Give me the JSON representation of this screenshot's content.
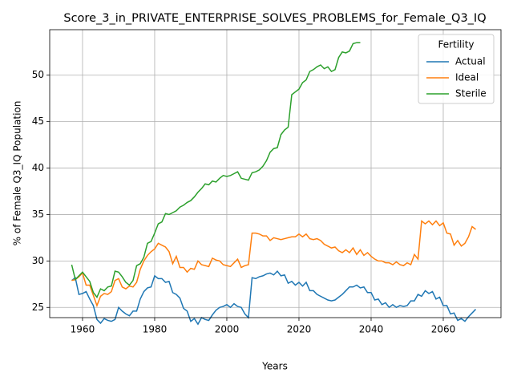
{
  "chart_data": {
    "type": "line",
    "title": "Score_3_in_PRIVATE_ENTERPRISE_SOLVES_PROBLEMS_for_Female_Q3_IQ",
    "xlabel": "Years",
    "ylabel": "% of Female Q3_IQ Population",
    "legend_title": "Fertility",
    "legend": "upper right",
    "grid": true,
    "xlim": [
      1950.9,
      2076
    ],
    "ylim": [
      23.9,
      54.9
    ],
    "xticks": [
      1960,
      1980,
      2000,
      2020,
      2040,
      2060
    ],
    "yticks": [
      25,
      30,
      35,
      40,
      45,
      50
    ],
    "x": [
      1957,
      1958,
      1959,
      1960,
      1961,
      1962,
      1963,
      1964,
      1965,
      1966,
      1967,
      1968,
      1969,
      1970,
      1971,
      1972,
      1973,
      1974,
      1975,
      1976,
      1977,
      1978,
      1979,
      1980,
      1981,
      1982,
      1983,
      1984,
      1985,
      1986,
      1987,
      1988,
      1989,
      1990,
      1991,
      1992,
      1993,
      1994,
      1995,
      1996,
      1997,
      1998,
      1999,
      2000,
      2001,
      2002,
      2003,
      2004,
      2005,
      2006,
      2007,
      2008,
      2009,
      2010,
      2011,
      2012,
      2013,
      2014,
      2015,
      2016,
      2017,
      2018,
      2019,
      2020,
      2021,
      2022,
      2023,
      2024,
      2025,
      2026,
      2027,
      2028,
      2029,
      2030,
      2031,
      2032,
      2033,
      2034,
      2035,
      2036,
      2037,
      2038,
      2039,
      2040,
      2041,
      2042,
      2043,
      2044,
      2045,
      2046,
      2047,
      2048,
      2049,
      2050,
      2051,
      2052,
      2053,
      2054,
      2055,
      2056,
      2057,
      2058,
      2059,
      2060,
      2061,
      2062,
      2063,
      2064,
      2065,
      2066,
      2067,
      2068,
      2069
    ],
    "series": [
      {
        "name": "Actual",
        "color": "#1f77b4",
        "values": [
          27.9,
          28.2,
          26.4,
          26.5,
          26.7,
          25.9,
          25.2,
          23.7,
          23.3,
          23.8,
          23.6,
          23.5,
          23.7,
          25.0,
          24.6,
          24.3,
          24.1,
          24.6,
          24.6,
          25.9,
          26.7,
          27.1,
          27.2,
          28.4,
          28.1,
          28.1,
          27.7,
          27.8,
          26.6,
          26.4,
          26.0,
          24.9,
          24.6,
          23.5,
          23.8,
          23.2,
          23.9,
          23.7,
          23.6,
          24.2,
          24.7,
          25.0,
          25.1,
          25.3,
          25.0,
          25.4,
          25.1,
          25.0,
          24.3,
          23.9,
          28.2,
          28.1,
          28.3,
          28.4,
          28.6,
          28.7,
          28.5,
          28.9,
          28.4,
          28.5,
          27.6,
          27.8,
          27.4,
          27.7,
          27.3,
          27.7,
          26.8,
          26.8,
          26.4,
          26.2,
          26.0,
          25.8,
          25.7,
          25.8,
          26.1,
          26.4,
          26.8,
          27.2,
          27.2,
          27.4,
          27.1,
          27.2,
          26.6,
          26.6,
          25.8,
          25.9,
          25.3,
          25.5,
          25.0,
          25.3,
          25.0,
          25.2,
          25.1,
          25.2,
          25.7,
          25.7,
          26.4,
          26.2,
          26.8,
          26.5,
          26.7,
          25.9,
          26.1,
          25.2,
          25.2,
          24.3,
          24.4,
          23.6,
          23.8,
          23.5,
          24.0,
          24.4,
          24.8
        ]
      },
      {
        "name": "Ideal",
        "color": "#ff7f0e",
        "values": [
          27.9,
          28.0,
          28.3,
          28.7,
          27.4,
          27.4,
          26.3,
          25.2,
          26.2,
          26.5,
          26.4,
          26.7,
          27.9,
          28.1,
          27.2,
          27.0,
          27.3,
          27.2,
          27.7,
          29.1,
          30.0,
          30.6,
          31.0,
          31.3,
          31.9,
          31.7,
          31.5,
          31.0,
          29.7,
          30.5,
          29.3,
          29.3,
          28.8,
          29.2,
          29.1,
          30.0,
          29.6,
          29.5,
          29.4,
          30.3,
          30.1,
          30.0,
          29.6,
          29.5,
          29.4,
          29.8,
          30.2,
          29.3,
          29.5,
          29.6,
          33.0,
          33.0,
          32.9,
          32.7,
          32.7,
          32.2,
          32.5,
          32.4,
          32.3,
          32.4,
          32.5,
          32.6,
          32.6,
          32.9,
          32.6,
          32.9,
          32.4,
          32.3,
          32.4,
          32.2,
          31.8,
          31.6,
          31.4,
          31.5,
          31.1,
          30.9,
          31.2,
          30.9,
          31.4,
          30.7,
          31.2,
          30.6,
          30.9,
          30.5,
          30.2,
          30.0,
          30.0,
          29.8,
          29.8,
          29.6,
          29.9,
          29.6,
          29.5,
          29.8,
          29.6,
          30.7,
          30.2,
          34.3,
          34.0,
          34.3,
          33.9,
          34.3,
          33.8,
          34.1,
          33.0,
          32.9,
          31.7,
          32.2,
          31.6,
          31.9,
          32.6,
          33.7,
          33.4
        ]
      },
      {
        "name": "Sterile",
        "color": "#2ca02c",
        "values": [
          29.6,
          28.0,
          28.4,
          28.8,
          28.3,
          27.8,
          26.6,
          26.1,
          27.0,
          26.8,
          27.2,
          27.3,
          28.9,
          28.8,
          28.3,
          27.7,
          27.4,
          27.9,
          29.5,
          29.7,
          30.4,
          31.9,
          32.1,
          33.0,
          34.0,
          34.2,
          35.1,
          35.0,
          35.2,
          35.4,
          35.8,
          36.0,
          36.3,
          36.5,
          36.9,
          37.4,
          37.8,
          38.3,
          38.2,
          38.6,
          38.5,
          38.9,
          39.2,
          39.1,
          39.2,
          39.4,
          39.6,
          38.9,
          38.8,
          38.7,
          39.5,
          39.6,
          39.8,
          40.2,
          40.8,
          41.7,
          42.1,
          42.2,
          43.6,
          44.1,
          44.4,
          47.9,
          48.2,
          48.5,
          49.2,
          49.5,
          50.4,
          50.6,
          50.9,
          51.1,
          50.7,
          50.9,
          50.4,
          50.6,
          51.9,
          52.5,
          52.4,
          52.6,
          53.4,
          53.5,
          53.5,
          null,
          null,
          null,
          null,
          null,
          null,
          null,
          null,
          null,
          null,
          null,
          null,
          null,
          null,
          null,
          null,
          null,
          null,
          null,
          null,
          null,
          null,
          null,
          null,
          null,
          null,
          null,
          null,
          null,
          null,
          null,
          null
        ]
      }
    ]
  }
}
